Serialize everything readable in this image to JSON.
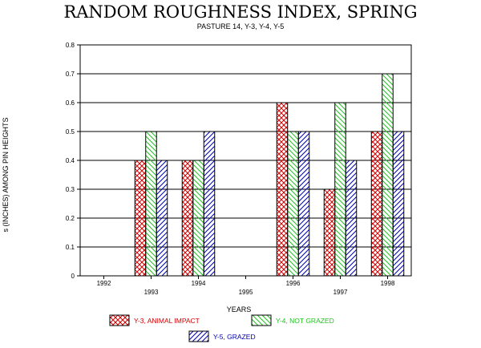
{
  "chart_data": {
    "type": "bar",
    "title": "RANDOM ROUGHNESS INDEX, SPRING",
    "subtitle": "PASTURE 14, Y-3, Y-4, Y-5",
    "xlabel": "YEARS",
    "ylabel": "s (INCHES) AMONG PIN HEIGHTS",
    "ylim": [
      0,
      0.8
    ],
    "yticks": [
      "0",
      "0.1",
      "0.2",
      "0.3",
      "0.4",
      "0.5",
      "0.6",
      "0.7",
      "0.8"
    ],
    "categories": [
      "1992",
      "1993",
      "1994",
      "1995",
      "1996",
      "1997",
      "1998"
    ],
    "grid": true,
    "legend_position": "bottom",
    "series": [
      {
        "name": "Y-3, ANIMAL IMPACT",
        "color": "#d40000",
        "pattern": "crosshatch",
        "values": [
          null,
          0.4,
          0.4,
          null,
          0.6,
          0.3,
          0.5
        ]
      },
      {
        "name": "Y-4, NOT GRAZED",
        "color": "#22c022",
        "pattern": "diagonal-down",
        "values": [
          null,
          0.5,
          0.4,
          null,
          0.5,
          0.6,
          0.7
        ]
      },
      {
        "name": "Y-5, GRAZED",
        "color": "#0000b0",
        "pattern": "diagonal-up",
        "values": [
          null,
          0.4,
          0.5,
          null,
          0.5,
          0.4,
          0.5
        ]
      }
    ]
  }
}
